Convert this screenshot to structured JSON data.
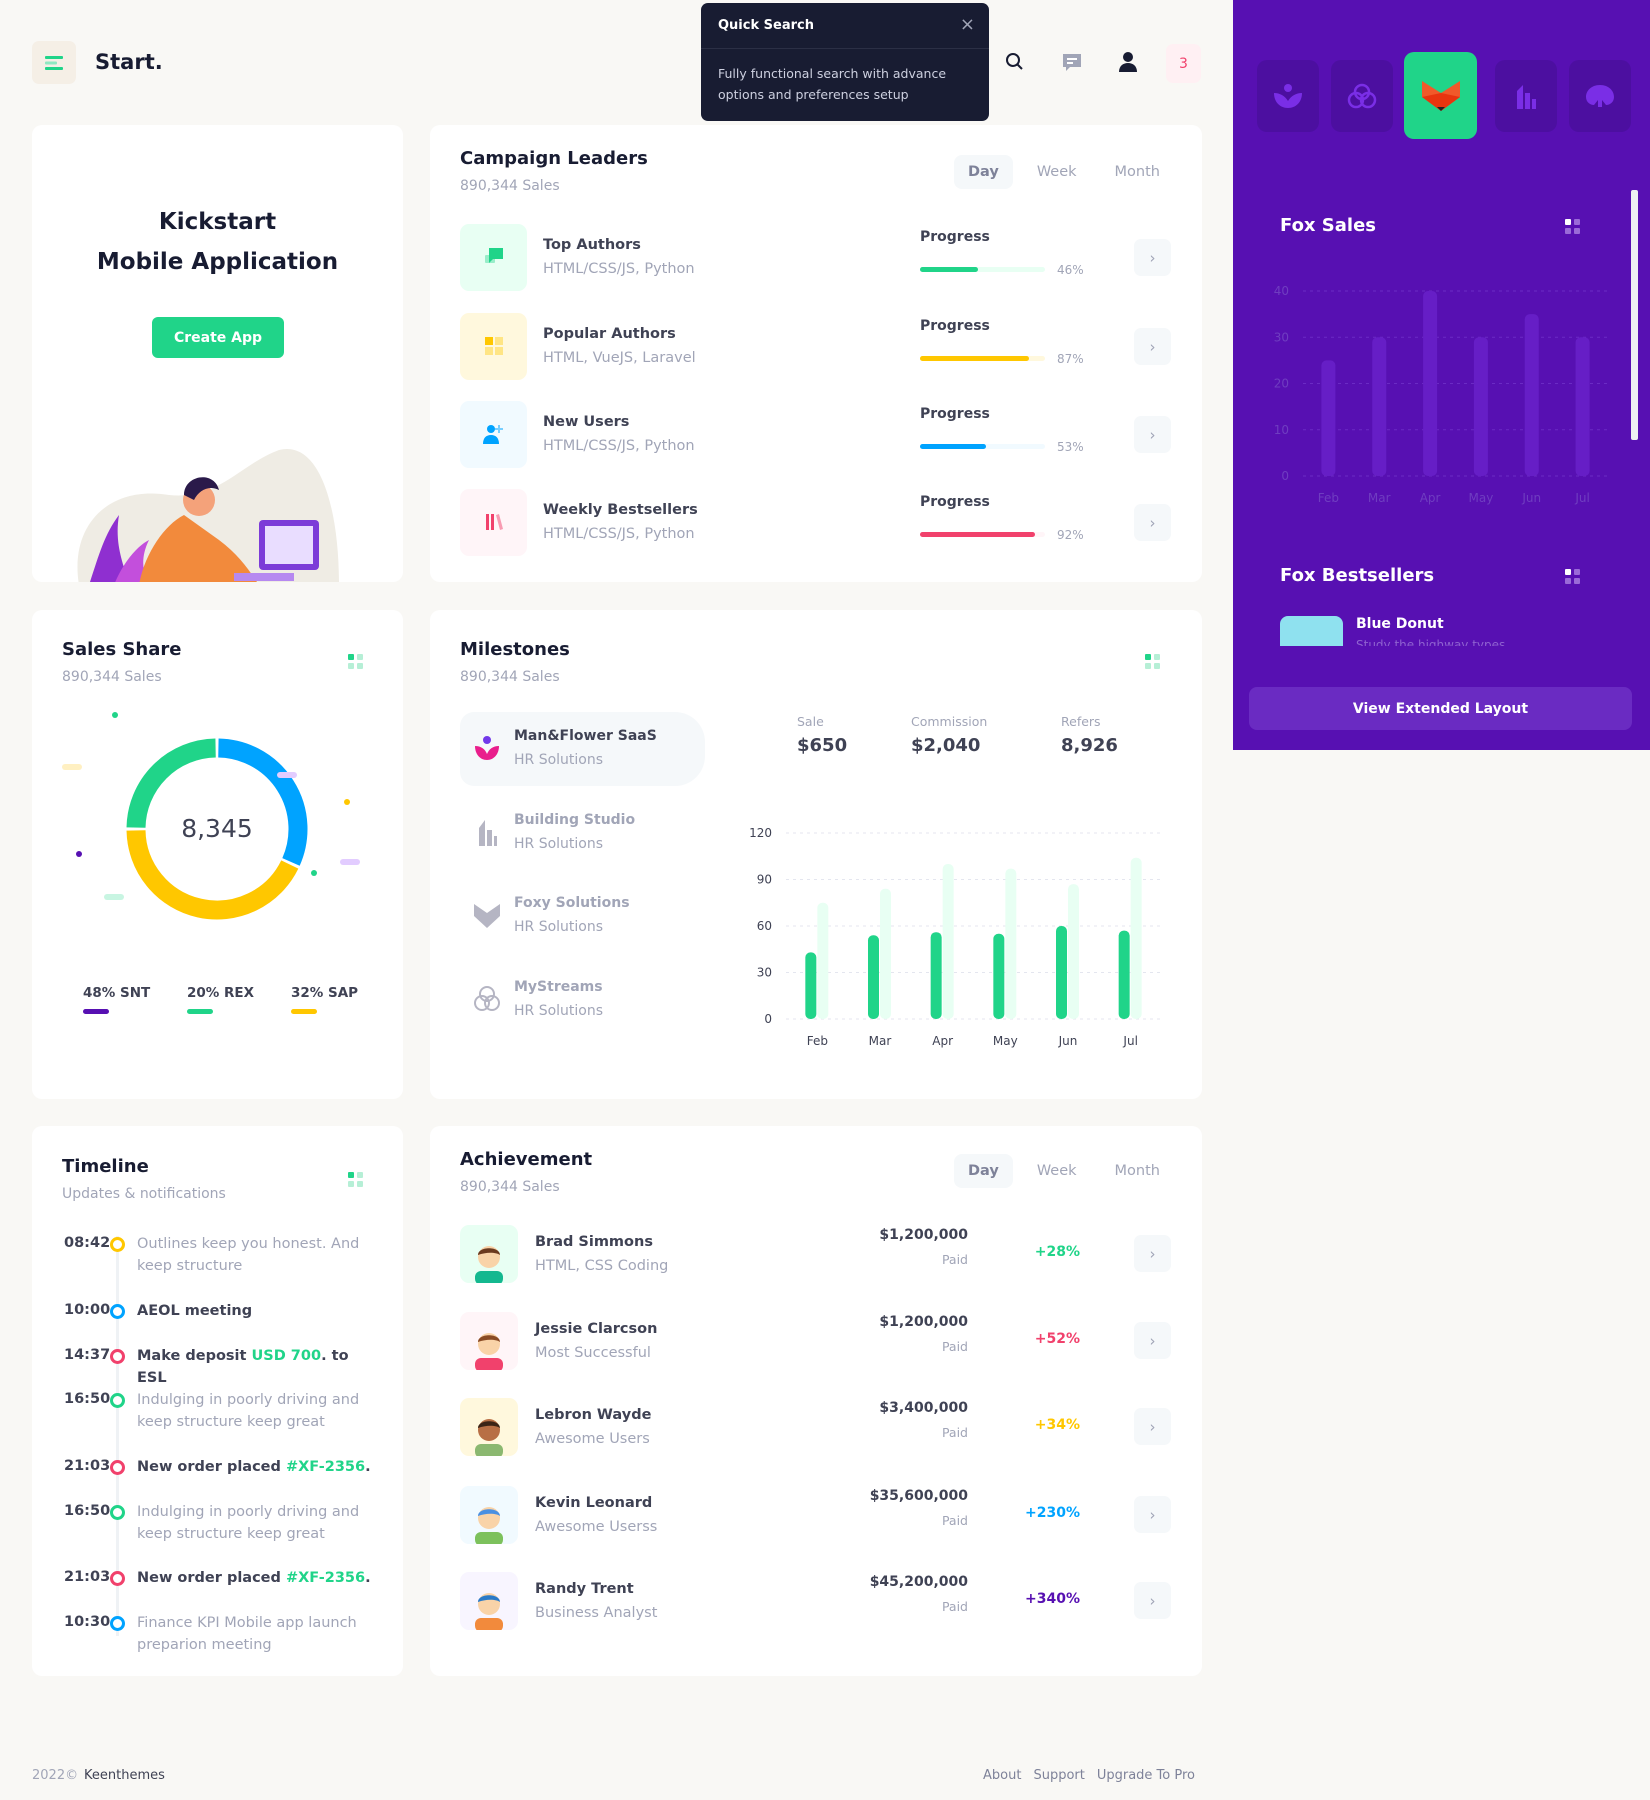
{
  "header": {
    "brand": "Start.",
    "badge_count": "3",
    "icons": [
      "menu-icon",
      "search-icon",
      "chat-icon",
      "user-icon"
    ]
  },
  "quick_search": {
    "title": "Quick Search",
    "text": "Fully functional search with advance options and preferences setup",
    "close": "×"
  },
  "kickstart": {
    "line1": "Kickstart",
    "line2": "Mobile Application",
    "button": "Create App"
  },
  "campaign": {
    "title": "Campaign Leaders",
    "subtitle": "890,344 Sales",
    "tabs": [
      "Day",
      "Week",
      "Month"
    ],
    "active_tab": "Day",
    "rows": [
      {
        "name": "Top Authors",
        "sub": "HTML/CSS/JS, Python",
        "progress_label": "Progress",
        "progress": 46,
        "pct": "46%",
        "color": "#20d489",
        "bg": "#e8fff3",
        "icon": "chat-icon"
      },
      {
        "name": "Popular Authors",
        "sub": "HTML, VueJS, Laravel",
        "progress_label": "Progress",
        "progress": 87,
        "pct": "87%",
        "color": "#ffc700",
        "bg": "#fff8dd",
        "icon": "grid-icon"
      },
      {
        "name": "New Users",
        "sub": "HTML/CSS/JS, Python",
        "progress_label": "Progress",
        "progress": 53,
        "pct": "53%",
        "color": "#00a3ff",
        "bg": "#f1faff",
        "icon": "add-user-icon"
      },
      {
        "name": "Weekly Bestsellers",
        "sub": "HTML/CSS/JS, Python",
        "progress_label": "Progress",
        "progress": 92,
        "pct": "92%",
        "color": "#f1416c",
        "bg": "#fff5f8",
        "icon": "books-icon"
      }
    ]
  },
  "sales_share": {
    "title": "Sales Share",
    "subtitle": "890,344 Sales",
    "center": "8,345",
    "legend": [
      {
        "label": "48% SNT",
        "color": "#5710b2"
      },
      {
        "label": "20% REX",
        "color": "#20d489"
      },
      {
        "label": "32% SAP",
        "color": "#ffc700"
      }
    ]
  },
  "milestones": {
    "title": "Milestones",
    "subtitle": "890,344 Sales",
    "items": [
      {
        "name": "Man&Flower SaaS",
        "sub": "HR Solutions"
      },
      {
        "name": "Building Studio",
        "sub": "HR Solutions"
      },
      {
        "name": "Foxy Solutions",
        "sub": "HR Solutions"
      },
      {
        "name": "MyStreams",
        "sub": "HR Solutions"
      }
    ],
    "stats": [
      {
        "label": "Sale",
        "value": "$650"
      },
      {
        "label": "Commission",
        "value": "$2,040"
      },
      {
        "label": "Refers",
        "value": "8,926"
      }
    ]
  },
  "chart_data": [
    {
      "type": "bar",
      "categories": [
        "Feb",
        "Mar",
        "Apr",
        "May",
        "Jun",
        "Jul"
      ],
      "ylim": [
        0,
        120
      ],
      "yticks": [
        "120",
        "90",
        "60",
        "30",
        "0"
      ],
      "grid": true,
      "series": [
        {
          "values": [
            43,
            54,
            56,
            55,
            60,
            57
          ],
          "color": "#20d489"
        },
        {
          "values": [
            75,
            84,
            100,
            97,
            87,
            104
          ],
          "color": "#e8fff3"
        }
      ]
    },
    {
      "type": "bar",
      "categories": [
        "Feb",
        "Mar",
        "Apr",
        "May",
        "Jun",
        "Jul"
      ],
      "ylim": [
        0,
        40
      ],
      "yticks": [
        "40",
        "30",
        "20",
        "10",
        "0"
      ],
      "grid": true,
      "series": [
        {
          "values": [
            25,
            30,
            40,
            30,
            35,
            30
          ],
          "color": "#661ec6"
        }
      ]
    }
  ],
  "timeline": {
    "title": "Timeline",
    "subtitle": "Updates & notifications",
    "items": [
      {
        "time": "08:42",
        "color": "#ffc700",
        "text": "Outlines keep you honest. And keep structure",
        "bold": false
      },
      {
        "time": "10:00",
        "color": "#00a3ff",
        "text": "AEOL meeting",
        "bold": true
      },
      {
        "time": "14:37",
        "color": "#f1416c",
        "pre": "Make deposit ",
        "hl": "USD 700",
        "post": ". to ESL",
        "bold": true
      },
      {
        "time": "16:50",
        "color": "#20d489",
        "text": "Indulging in poorly driving and keep structure keep great",
        "bold": false
      },
      {
        "time": "21:03",
        "color": "#f1416c",
        "pre": "New order placed ",
        "hl": "#XF-2356",
        "post": ".",
        "bold": true
      },
      {
        "time": "16:50",
        "color": "#20d489",
        "text": "Indulging in poorly driving and keep structure keep great",
        "bold": false
      },
      {
        "time": "21:03",
        "color": "#f1416c",
        "pre": "New order placed ",
        "hl": "#XF-2356",
        "post": ".",
        "bold": true
      },
      {
        "time": "10:30",
        "color": "#00a3ff",
        "text": "Finance KPI Mobile app launch preparion meeting",
        "bold": false
      }
    ]
  },
  "achievement": {
    "title": "Achievement",
    "subtitle": "890,344 Sales",
    "tabs": [
      "Day",
      "Week",
      "Month"
    ],
    "active_tab": "Day",
    "rows": [
      {
        "name": "Brad Simmons",
        "sub": "HTML, CSS Coding",
        "amount": "$1,200,000",
        "status": "Paid",
        "change": "+28%",
        "color": "#20d489",
        "bg": "#e8fff3"
      },
      {
        "name": "Jessie Clarcson",
        "sub": "Most Successful",
        "amount": "$1,200,000",
        "status": "Paid",
        "change": "+52%",
        "color": "#f1416c",
        "bg": "#fff5f8"
      },
      {
        "name": "Lebron Wayde",
        "sub": "Awesome Users",
        "amount": "$3,400,000",
        "status": "Paid",
        "change": "+34%",
        "color": "#ffc700",
        "bg": "#fff8dd"
      },
      {
        "name": "Kevin Leonard",
        "sub": "Awesome Userss",
        "amount": "$35,600,000",
        "status": "Paid",
        "change": "+230%",
        "color": "#00a3ff",
        "bg": "#f1faff"
      },
      {
        "name": "Randy Trent",
        "sub": "Business Analyst",
        "amount": "$45,200,000",
        "status": "Paid",
        "change": "+340%",
        "color": "#5710b2",
        "bg": "#f8f5ff"
      }
    ]
  },
  "panel": {
    "fox_sales": "Fox Sales",
    "fox_bestsellers": "Fox Bestsellers",
    "item_name": "Blue Donut",
    "item_sub": "Study the highway types",
    "button": "View Extended Layout",
    "accent": "#5710b2"
  },
  "footer": {
    "year": "2022©",
    "company": "Keenthemes",
    "links": [
      "About",
      "Support",
      "Upgrade To Pro"
    ]
  }
}
